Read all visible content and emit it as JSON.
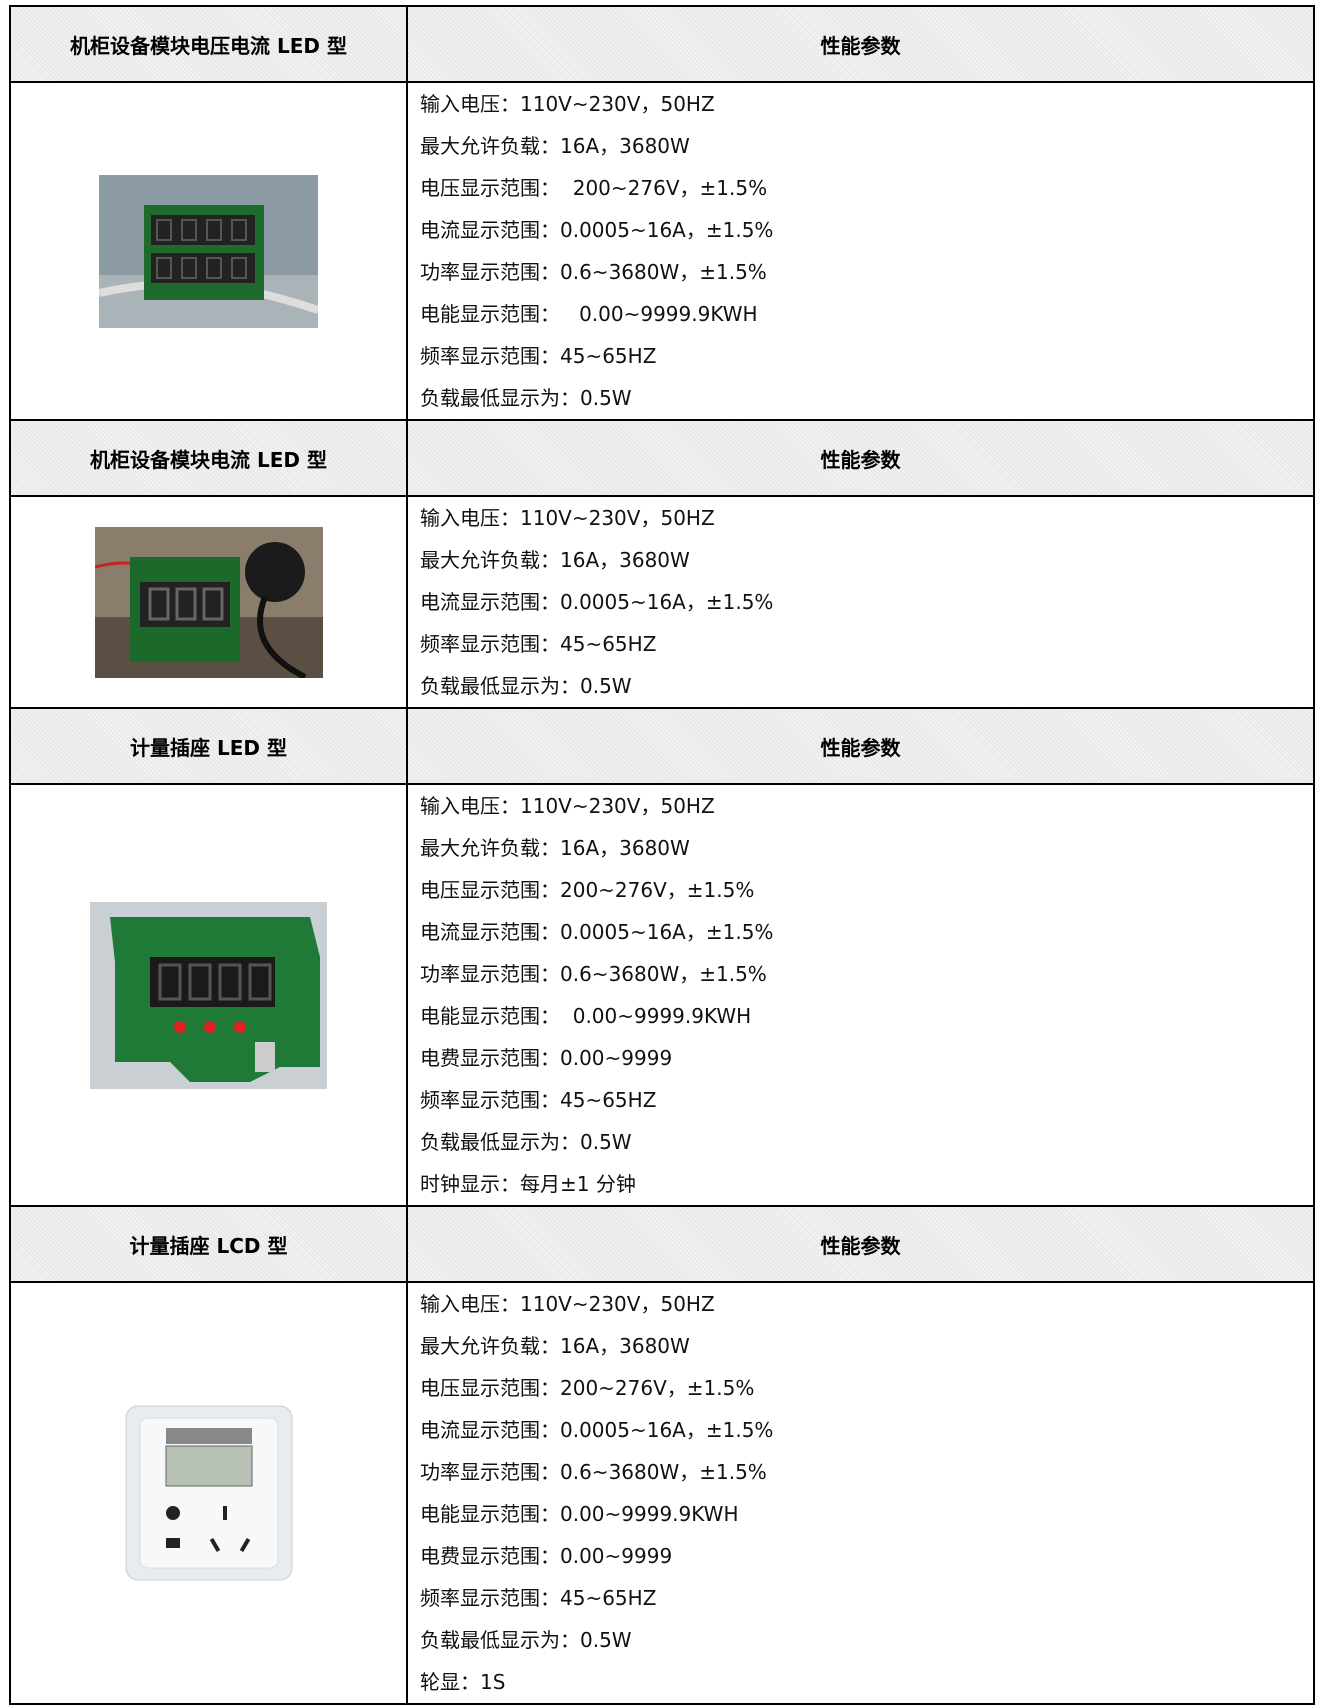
{
  "sections": [
    {
      "title": "机柜设备模块电压电流 LED 型",
      "header": "性能参数",
      "specs": [
        "输入电压：110V~230V，50HZ",
        "最大允许负载：16A，3680W",
        "电压显示范围：  200~276V，±1.5%",
        "电流显示范围：0.0005~16A，±1.5%",
        "功率显示范围：0.6~3680W，±1.5%",
        "电能显示范围：   0.00~9999.9KWH",
        "频率显示范围：45~65HZ",
        "负载最低显示为：0.5W"
      ]
    },
    {
      "title": "机柜设备模块电流 LED 型",
      "header": "性能参数",
      "specs": [
        "输入电压：110V~230V，50HZ",
        "最大允许负载：16A，3680W",
        "电流显示范围：0.0005~16A，±1.5%",
        "频率显示范围：45~65HZ",
        "负载最低显示为：0.5W"
      ]
    },
    {
      "title": "计量插座 LED 型",
      "header": "性能参数",
      "specs": [
        "输入电压：110V~230V，50HZ",
        "最大允许负载：16A，3680W",
        "电压显示范围：200~276V，±1.5%",
        "电流显示范围：0.0005~16A，±1.5%",
        "功率显示范围：0.6~3680W，±1.5%",
        "电能显示范围：  0.00~9999.9KWH",
        "电费显示范围：0.00~9999",
        "频率显示范围：45~65HZ",
        "负载最低显示为：0.5W",
        "时钟显示：每月±1 分钟"
      ]
    },
    {
      "title": "计量插座 LCD 型",
      "header": "性能参数",
      "specs": [
        "输入电压：110V~230V，50HZ",
        "最大允许负载：16A，3680W",
        "电压显示范围：200~276V，±1.5%",
        "电流显示范围：0.0005~16A，±1.5%",
        "功率显示范围：0.6~3680W，±1.5%",
        "电能显示范围：0.00~9999.9KWH",
        "电费显示范围：0.00~9999",
        "频率显示范围：45~65HZ",
        "负载最低显示为：0.5W",
        "轮显：1S"
      ]
    }
  ]
}
